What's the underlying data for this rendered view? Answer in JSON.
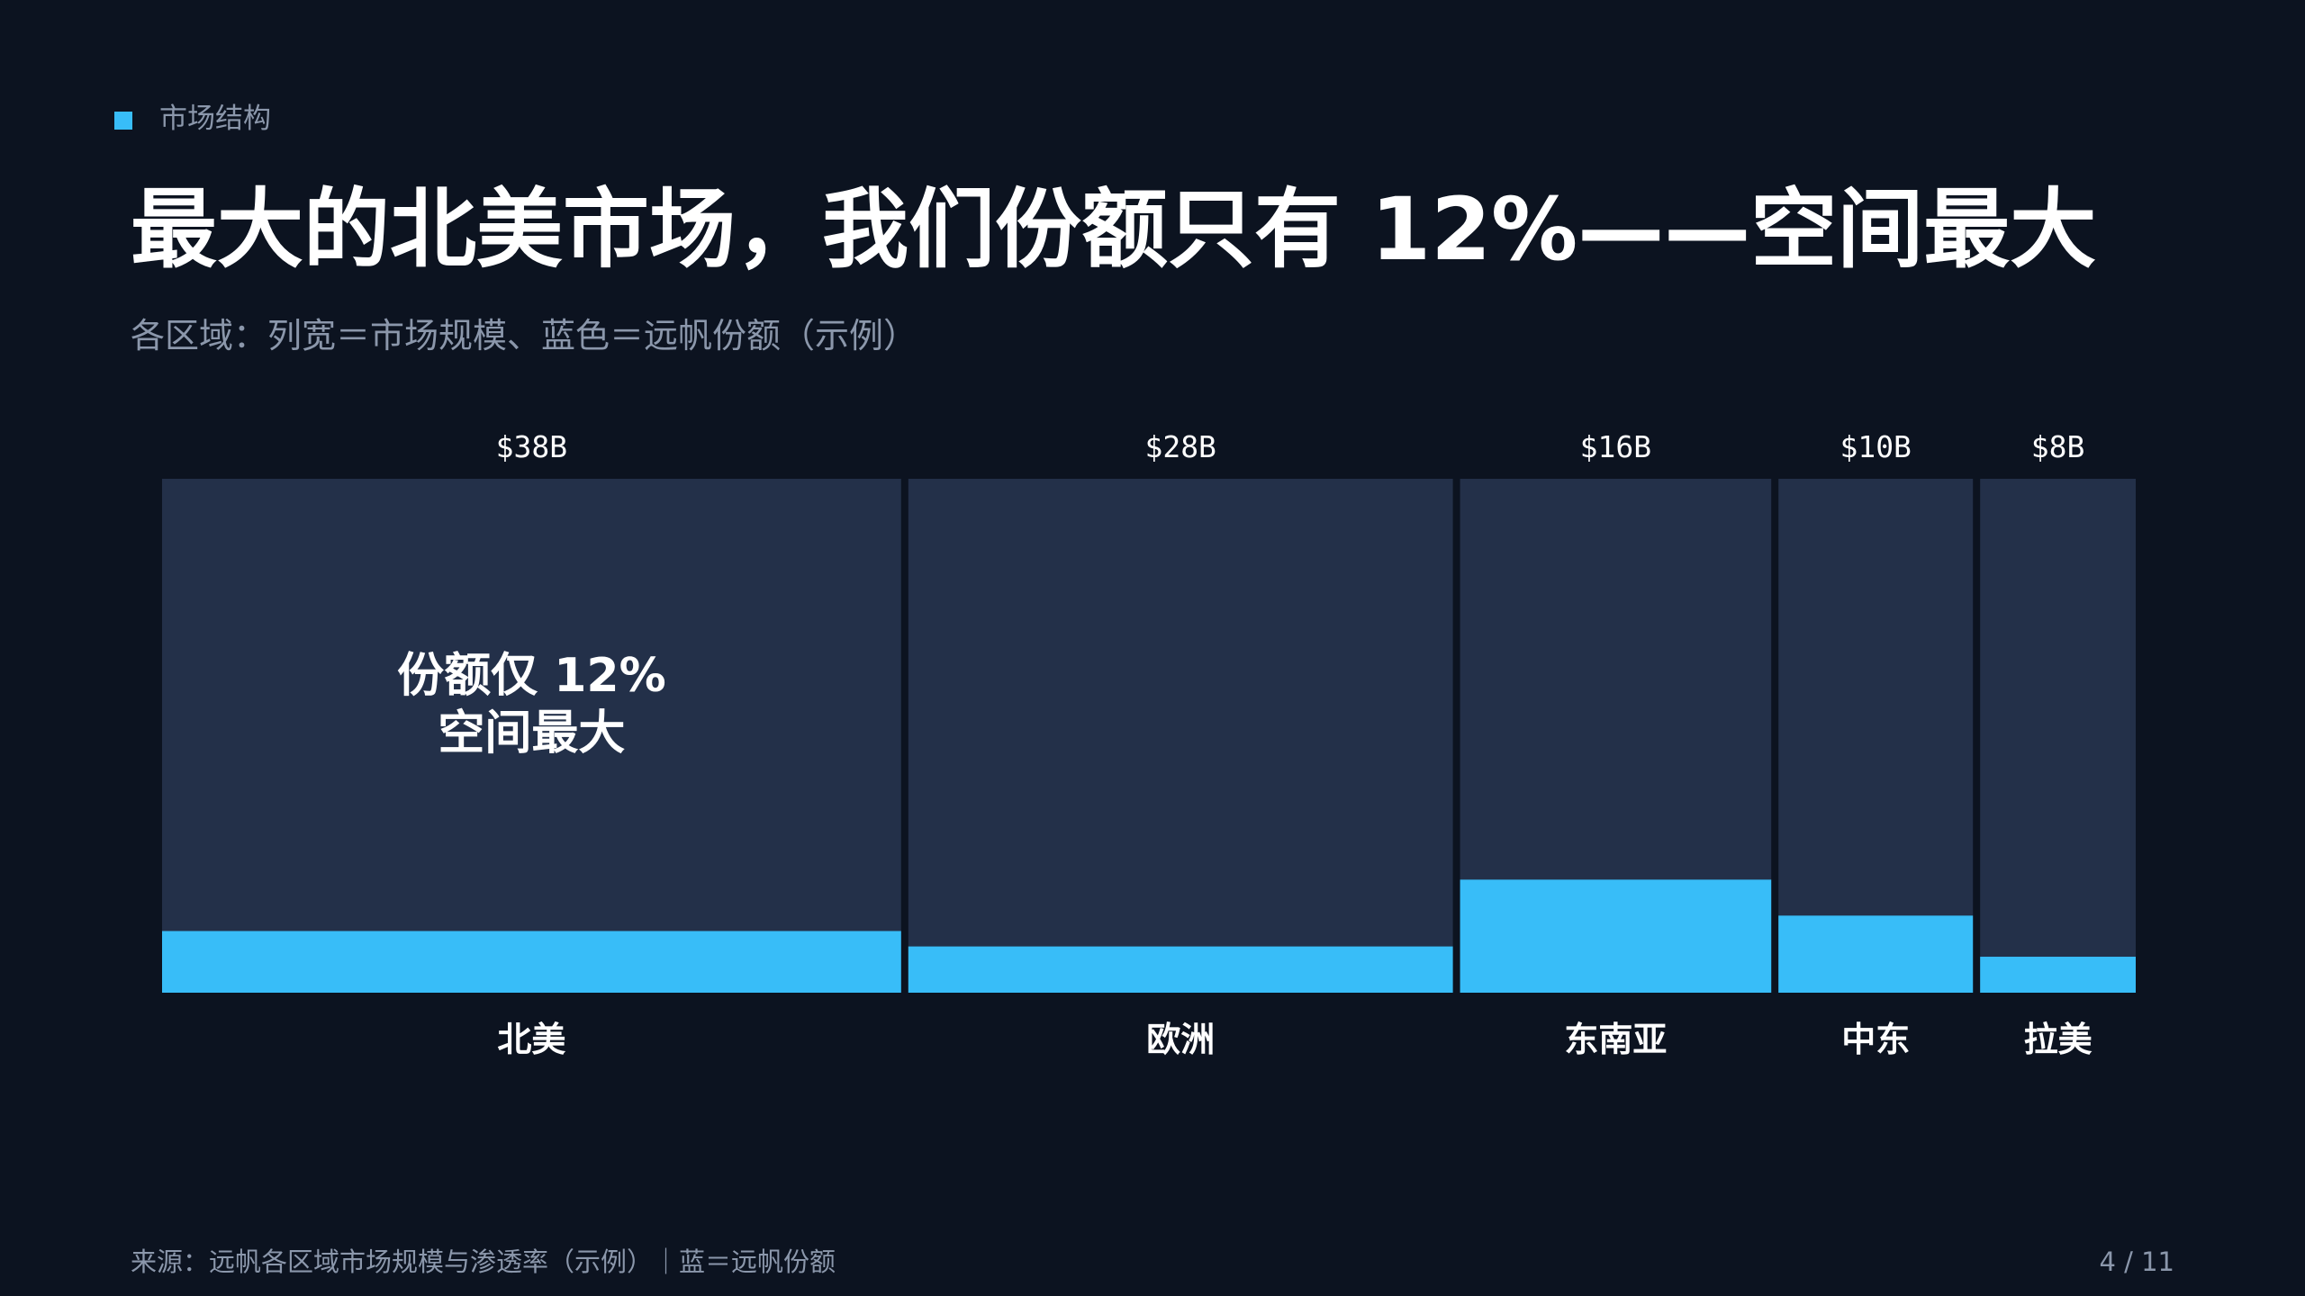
{
  "header": {
    "section_label": "市场结构",
    "title": "最大的北美市场，我们份额只有 12%——空间最大",
    "subtitle": "各区域：列宽＝市场规模、蓝色＝远帆份额（示例）"
  },
  "colors": {
    "background": "#0c1320",
    "column_fill": "#233049",
    "share_fill": "#38bdf8",
    "accent": "#38bdf8",
    "muted_text": "#8b97ab",
    "text": "#ffffff"
  },
  "chart_data": {
    "type": "mekko",
    "width_measure": "market_size_billion_usd",
    "categories": [
      "北美",
      "欧洲",
      "东南亚",
      "中东",
      "拉美"
    ],
    "market_size_labels": [
      "$38B",
      "$28B",
      "$16B",
      "$10B",
      "$8B"
    ],
    "market_size": [
      38,
      28,
      16,
      10,
      8
    ],
    "share_pct": [
      12,
      9,
      22,
      15,
      7
    ],
    "ylim": [
      0,
      100
    ],
    "annotation": {
      "category": "北美",
      "lines": [
        "份额仅 12%",
        "空间最大"
      ]
    }
  },
  "footer": {
    "source": "来源：远帆各区域市场规模与渗透率（示例）｜蓝＝远帆份额",
    "page": "4 / 11"
  }
}
